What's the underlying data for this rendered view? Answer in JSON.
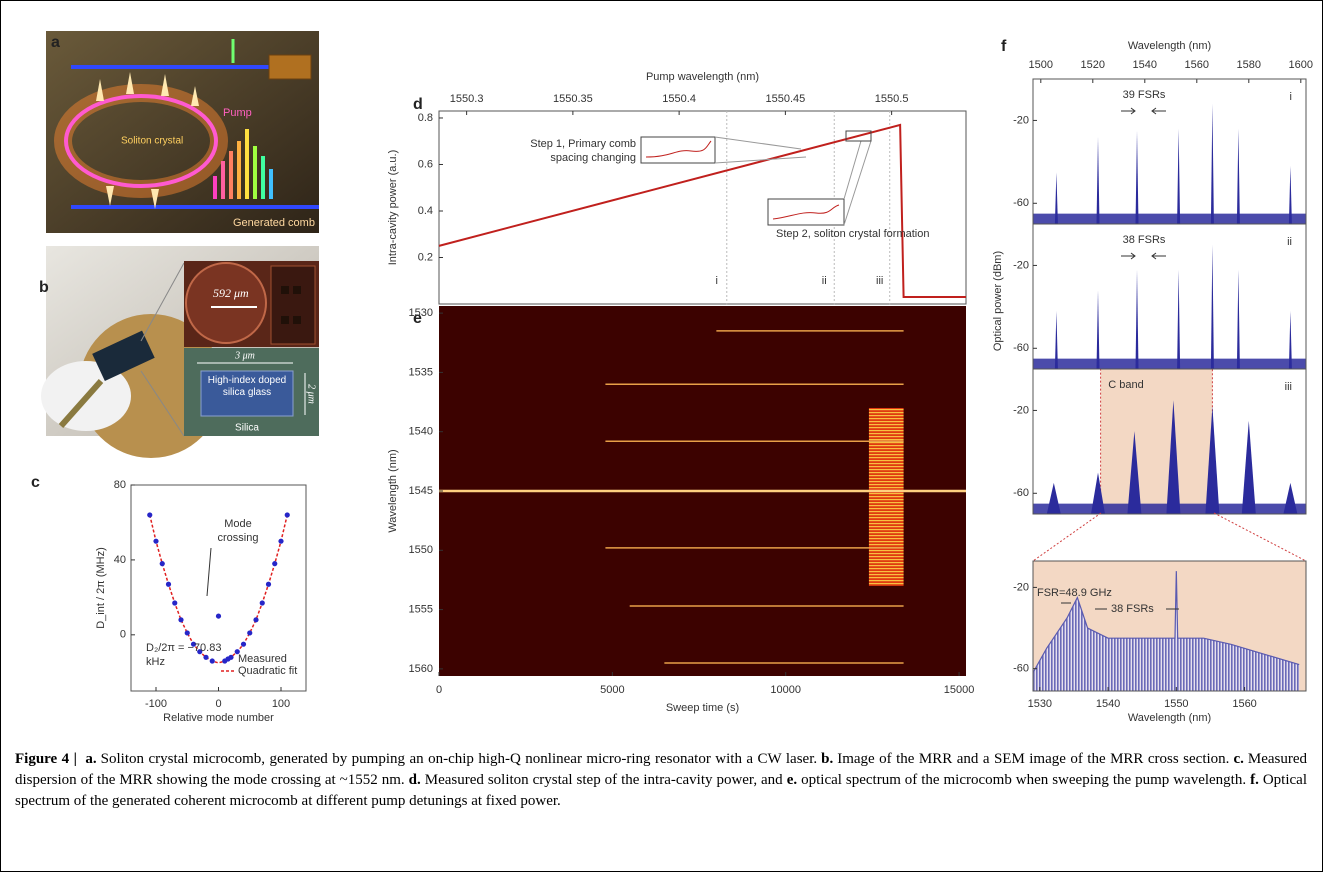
{
  "panel_a": {
    "label": "a",
    "ring": "Soliton crystal",
    "pump": "Pump",
    "comb": "Generated comb"
  },
  "panel_b": {
    "label": "b",
    "scale": "592 μm",
    "width": "3 μm",
    "height": "2 μm",
    "core": "High-index doped silica glass",
    "cladding": "Silica"
  },
  "chart_data": [
    {
      "type": "scatter",
      "label": "c",
      "xlabel": "Relative mode number",
      "ylabel": "D_int / 2π (MHz)",
      "x": [
        -110,
        -100,
        -90,
        -80,
        -70,
        -60,
        -50,
        -40,
        -30,
        -20,
        -10,
        0,
        10,
        20,
        30,
        40,
        50,
        60,
        70,
        80,
        90,
        100,
        110
      ],
      "series": [
        {
          "name": "Measured",
          "color": "#2626c8",
          "values": [
            64,
            50,
            38,
            27,
            17,
            8,
            1,
            -5,
            -9,
            -12,
            -14,
            10,
            -14,
            -12,
            -9,
            -5,
            1,
            8,
            17,
            27,
            38,
            50,
            64
          ]
        },
        {
          "name": "Quadratic fit",
          "color": "#e02020",
          "values": [
            64,
            50,
            38,
            27,
            17,
            8,
            1,
            -5,
            -9,
            -12,
            -14,
            -15,
            -14,
            -12,
            -9,
            -5,
            1,
            8,
            17,
            27,
            38,
            50,
            64
          ]
        }
      ],
      "xlim": [
        -140,
        140
      ],
      "xticks": [
        -100,
        0,
        100
      ],
      "ylim": [
        -30,
        80
      ],
      "yticks": [
        0,
        40,
        80
      ],
      "legend": "lower right",
      "annotations": [
        "Mode crossing",
        "D₂/2π = −70.83 kHz"
      ]
    },
    {
      "type": "line",
      "label": "d",
      "x2label": "Pump wavelength (nm)",
      "ylabel": "Intra-cavity power (a.u.)",
      "x": [
        0,
        13300,
        13400,
        15200
      ],
      "values": [
        0.25,
        0.77,
        0.03,
        0.03
      ],
      "color": "#c0201d",
      "xlim": [
        0,
        15200
      ],
      "ylim": [
        0,
        0.83
      ],
      "yticks": [
        0.2,
        0.4,
        0.6,
        0.8
      ],
      "x2lim": [
        1550.287,
        1550.535
      ],
      "x2ticks": [
        1550.3,
        1550.35,
        1550.4,
        1550.45,
        1550.5
      ],
      "markers": {
        "x": [
          8300,
          11400,
          13000
        ],
        "labels": [
          "i",
          "ii",
          "iii"
        ]
      },
      "annotations": [
        "Step 1, Primary comb spacing changing",
        "Step 2, soliton crystal formation"
      ]
    },
    {
      "type": "heatmap",
      "label": "e",
      "xlabel": "Sweep time (s)",
      "ylabel": "Wavelength (nm)",
      "xlim": [
        0,
        15200
      ],
      "xticks": [
        0,
        5000,
        10000,
        15000
      ],
      "ylim": [
        1529.4,
        1560.6
      ],
      "yticks": [
        1530,
        1535,
        1540,
        1545,
        1550,
        1555,
        1560
      ],
      "lines": {
        "wavelengths": [
          1531.5,
          1536,
          1540.8,
          1545,
          1549.8,
          1554.7,
          1559.5
        ],
        "start": [
          8000,
          4800,
          4800,
          0,
          4800,
          5500,
          6500
        ],
        "end": [
          13400,
          13400,
          13400,
          15200,
          13400,
          13400,
          13400
        ]
      },
      "crystal": {
        "x": [
          12400,
          13400
        ],
        "y": [
          1538,
          1553
        ]
      }
    },
    {
      "type": "spectrum",
      "label": "f",
      "xlabel": "Wavelength (nm)",
      "ylabel": "Optical power (dBm)",
      "color": "#2b2b9c",
      "xlim": [
        1497,
        1602
      ],
      "xticks": [
        1500,
        1520,
        1540,
        1560,
        1580,
        1600
      ],
      "ylim": [
        -70,
        0
      ],
      "yticks": [
        -60,
        -20
      ],
      "floor": -65,
      "panels": [
        {
          "name": "i",
          "annotation": "39 FSRs",
          "x": [
            1506,
            1522,
            1537,
            1553,
            1566,
            1576,
            1596
          ],
          "values": [
            -45,
            -28,
            -25,
            -24,
            -12,
            -24,
            -42
          ]
        },
        {
          "name": "ii",
          "annotation": "38 FSRs",
          "x": [
            1506,
            1522,
            1537,
            1553,
            1566,
            1576,
            1596
          ],
          "values": [
            -42,
            -32,
            -22,
            -22,
            -10,
            -22,
            -42
          ]
        },
        {
          "name": "iii",
          "annotation": "C band",
          "band": [
            1523,
            1566
          ],
          "x": [
            1505,
            1522,
            1536,
            1551,
            1566,
            1580,
            1596
          ],
          "values": [
            -55,
            -50,
            -30,
            -15,
            -18,
            -25,
            -55
          ]
        }
      ]
    },
    {
      "type": "area",
      "xlabel": "Wavelength (nm)",
      "color": "#5a5ab0",
      "x": [
        1529,
        1531,
        1534,
        1535.5,
        1537,
        1540,
        1544,
        1548,
        1549.8,
        1550,
        1550.2,
        1554,
        1558,
        1562,
        1568
      ],
      "values": [
        -62,
        -50,
        -35,
        -25,
        -40,
        -45,
        -45,
        -45,
        -45,
        -12,
        -45,
        -45,
        -48,
        -52,
        -58
      ],
      "xlim": [
        1529,
        1569
      ],
      "xticks": [
        1530,
        1540,
        1550,
        1560
      ],
      "ylim": [
        -71,
        -7
      ],
      "yticks": [
        -60,
        -20
      ],
      "annotations": [
        "FSR=48.9 GHz",
        "38 FSRs"
      ]
    }
  ],
  "caption": {
    "figure": "Figure 4 |",
    "parts": [
      {
        "label": "a.",
        "text": "Soliton crystal microcomb, generated by pumping an on-chip high-Q nonlinear micro-ring resonator with a CW laser."
      },
      {
        "label": "b.",
        "text": "Image of the MRR and a SEM image of the MRR cross section."
      },
      {
        "label": "c.",
        "text": "Measured dispersion of the MRR showing the mode crossing at ~1552 nm."
      },
      {
        "label": "d.",
        "text": "Measured soliton crystal step of the intra-cavity power, and"
      },
      {
        "label": "e.",
        "text": "optical spectrum of the microcomb when sweeping the pump wavelength."
      },
      {
        "label": "f.",
        "text": "Optical spectrum of the generated coherent microcomb at different pump detunings at fixed power."
      }
    ]
  }
}
